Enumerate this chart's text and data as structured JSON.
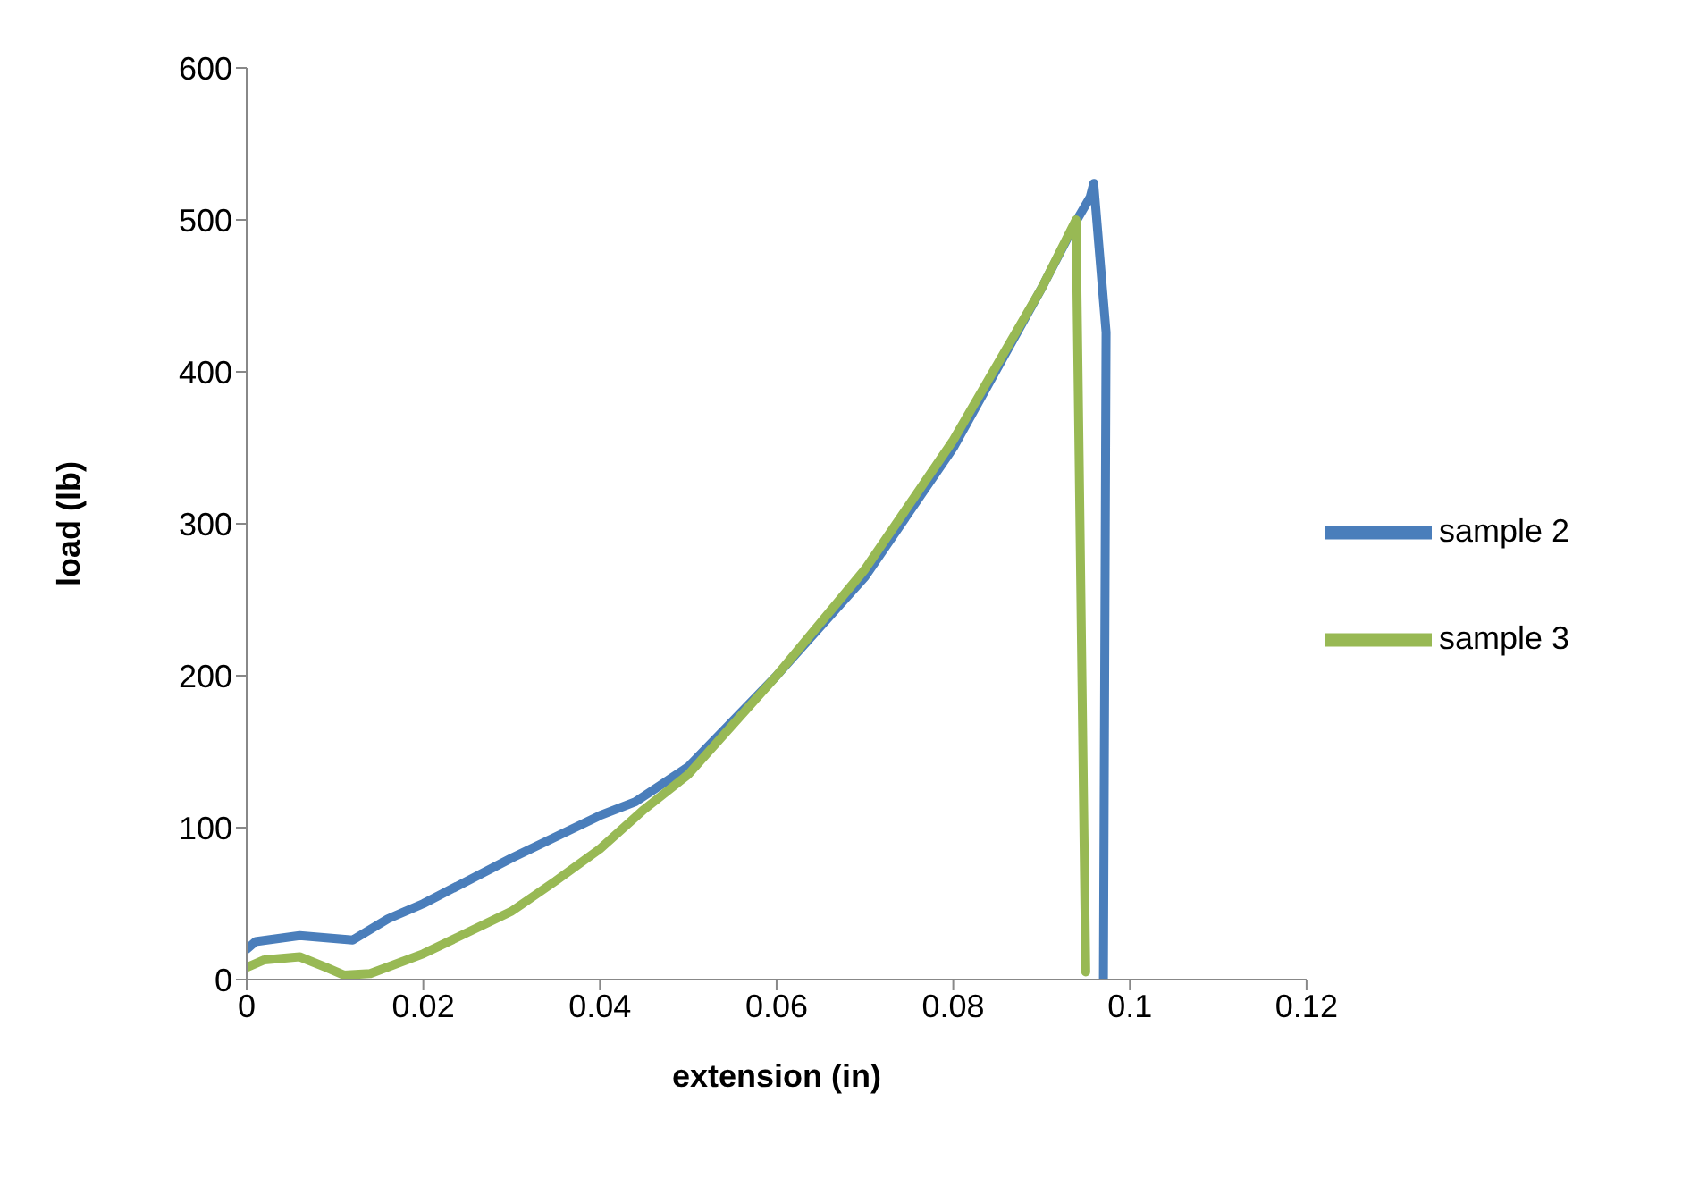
{
  "chart_data": {
    "type": "line",
    "xlabel": "extension (in)",
    "ylabel": "load (lb)",
    "xlim": [
      0,
      0.12
    ],
    "xticks": [
      0,
      0.02,
      0.04,
      0.06,
      0.08,
      0.1,
      0.12
    ],
    "ylim": [
      0,
      600
    ],
    "yticks": [
      0,
      100,
      200,
      300,
      400,
      500,
      600
    ],
    "grid": false,
    "legend": "right",
    "marker": "none",
    "line_style": "solid",
    "series": [
      {
        "name": "sample 2",
        "color": "#4a7ebb",
        "x": [
          0,
          0.001,
          0.006,
          0.012,
          0.016,
          0.02,
          0.03,
          0.04,
          0.044,
          0.05,
          0.06,
          0.07,
          0.08,
          0.09,
          0.094,
          0.0955,
          0.0959,
          0.0973,
          0.097
        ],
        "values": [
          20,
          25,
          29,
          26,
          40,
          50,
          80,
          108,
          117,
          140,
          200,
          265,
          350,
          455,
          500,
          515,
          524,
          426,
          0
        ]
      },
      {
        "name": "sample 3",
        "color": "#98b954",
        "x": [
          0,
          0.002,
          0.006,
          0.009,
          0.011,
          0.014,
          0.02,
          0.03,
          0.035,
          0.04,
          0.045,
          0.05,
          0.06,
          0.07,
          0.08,
          0.09,
          0.0939,
          0.095
        ],
        "values": [
          8,
          13,
          15,
          8,
          3,
          4,
          17,
          45,
          65,
          86,
          112,
          135,
          200,
          270,
          355,
          455,
          500,
          5
        ]
      }
    ]
  }
}
